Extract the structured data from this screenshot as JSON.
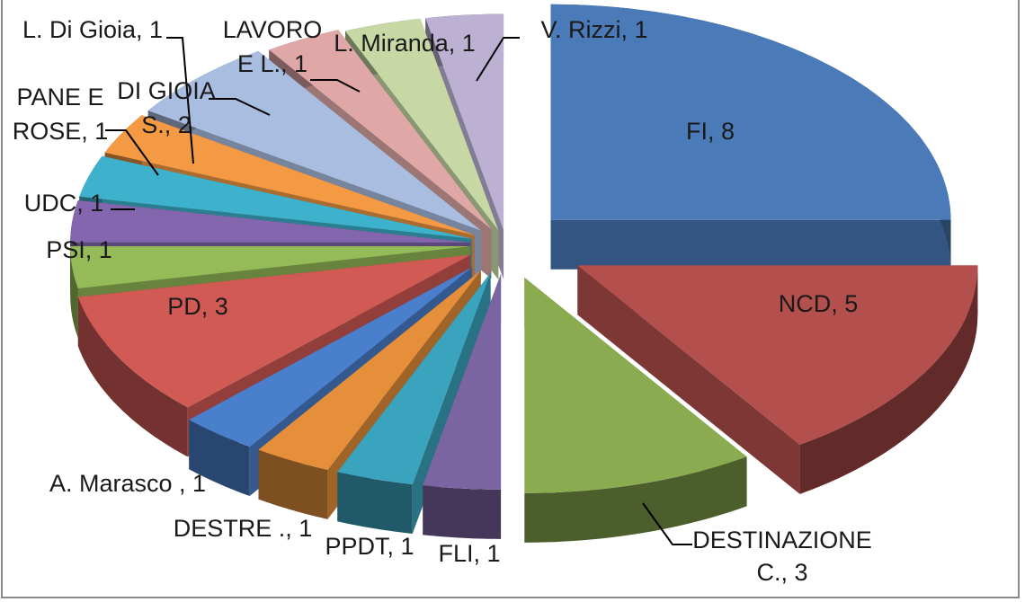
{
  "chart_data": {
    "type": "pie",
    "title": "",
    "style": "3d-exploded",
    "slices": [
      {
        "label": "FI, 8",
        "name": "FI",
        "value": 8,
        "color": "#4a7ab8"
      },
      {
        "label": "NCD, 5",
        "name": "NCD",
        "value": 5,
        "color": "#b34f4c"
      },
      {
        "label": "DESTINAZIONE C., 3",
        "name": "DESTINAZIONE C.",
        "value": 3,
        "color": "#8aab4f"
      },
      {
        "label": "FLI, 1",
        "name": "FLI",
        "value": 1,
        "color": "#7b64a2"
      },
      {
        "label": "PPDT, 1",
        "name": "PPDT",
        "value": 1,
        "color": "#3aa3bd"
      },
      {
        "label": "DESTRE ., 1",
        "name": "DESTRE .",
        "value": 1,
        "color": "#e58f3b"
      },
      {
        "label": "A. Marasco , 1",
        "name": "A. Marasco",
        "value": 1,
        "color": "#4a7fcc"
      },
      {
        "label": "PD, 3",
        "name": "PD",
        "value": 3,
        "color": "#d15a55"
      },
      {
        "label": "PSI, 1",
        "name": "PSI",
        "value": 1,
        "color": "#94bb57"
      },
      {
        "label": "UDC, 1",
        "name": "UDC",
        "value": 1,
        "color": "#8366ad"
      },
      {
        "label": "PANE E ROSE, 1",
        "name": "PANE E ROSE",
        "value": 1,
        "color": "#3eb2cd"
      },
      {
        "label": "L. Di Gioia, 1",
        "name": "L. Di Gioia",
        "value": 1,
        "color": "#f49a44"
      },
      {
        "label": "DI GIOIA S., 2",
        "name": "DI GIOIA S.",
        "value": 2,
        "color": "#a9bde0"
      },
      {
        "label": "LAVORO E L., 1",
        "name": "LAVORO E L.",
        "value": 1,
        "color": "#dfa8a7"
      },
      {
        "label": "L. Miranda, 1",
        "name": "L. Miranda",
        "value": 1,
        "color": "#c7d8a5"
      },
      {
        "label": "V. Rizzi, 1",
        "name": "V. Rizzi",
        "value": 1,
        "color": "#bcb1d3"
      }
    ],
    "label_text": {
      "fi": [
        "FI, 8"
      ],
      "ncd": [
        "NCD, 5"
      ],
      "destinazione": [
        "DESTINAZIONE",
        "C., 3"
      ],
      "fli": [
        "FLI, 1"
      ],
      "ppdt": [
        "PPDT, 1"
      ],
      "destre": [
        "DESTRE ., 1"
      ],
      "marasco": [
        "A. Marasco , 1"
      ],
      "pd": [
        "PD, 3"
      ],
      "psi": [
        "PSI, 1"
      ],
      "udc": [
        "UDC, 1"
      ],
      "pane": [
        "PANE E",
        "ROSE, 1"
      ],
      "ldigioia": [
        "L. Di Gioia, 1"
      ],
      "digioias": [
        "DI GIOIA",
        "S., 2"
      ],
      "lavoro": [
        "LAVORO",
        "E L., 1"
      ],
      "miranda": [
        "L. Miranda, 1"
      ],
      "rizzi": [
        "V. Rizzi, 1"
      ]
    }
  }
}
